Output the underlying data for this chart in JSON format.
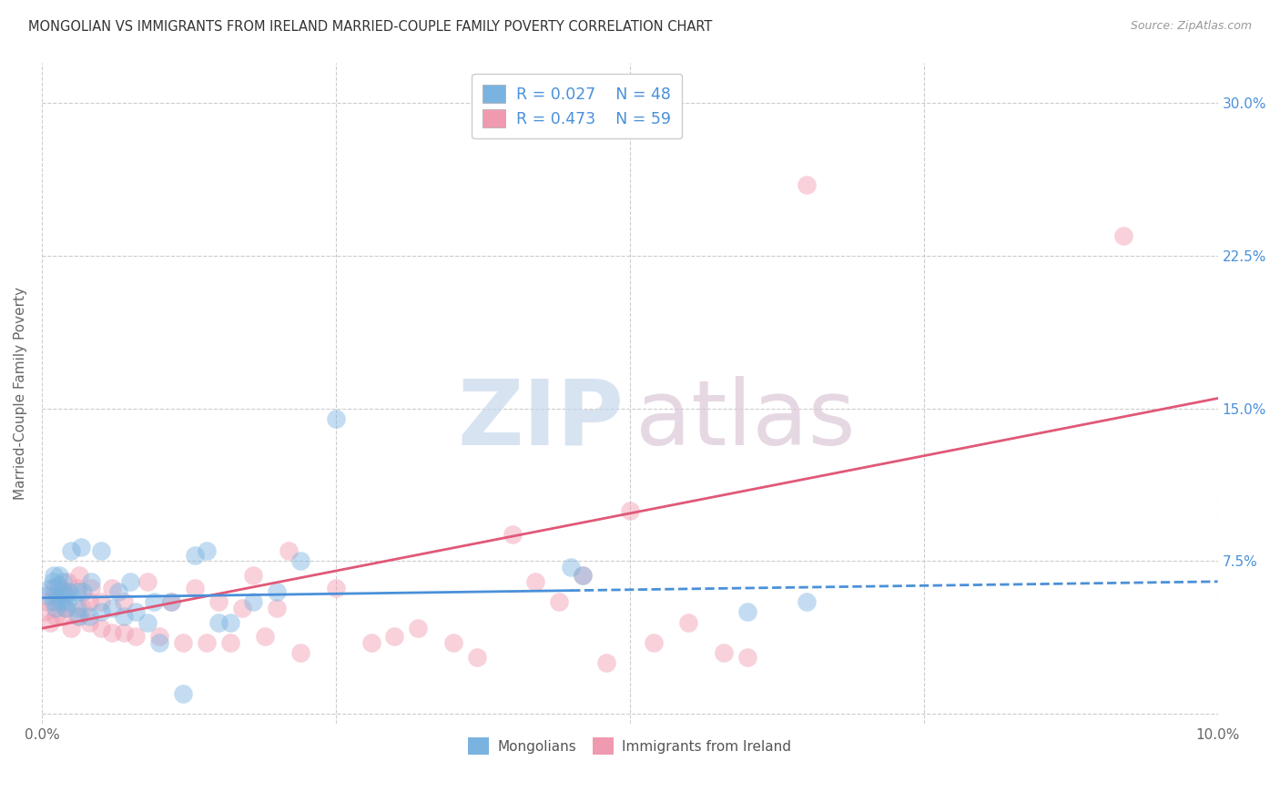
{
  "title": "MONGOLIAN VS IMMIGRANTS FROM IRELAND MARRIED-COUPLE FAMILY POVERTY CORRELATION CHART",
  "source": "Source: ZipAtlas.com",
  "ylabel": "Married-Couple Family Poverty",
  "xlim": [
    0.0,
    0.1
  ],
  "ylim": [
    -0.005,
    0.32
  ],
  "color_mongolian": "#7ab3e0",
  "color_ireland": "#f09ab0",
  "legend_r_mongolian": "R = 0.027",
  "legend_n_mongolian": "N = 48",
  "legend_r_ireland": "R = 0.473",
  "legend_n_ireland": "N = 59",
  "label_mongolian": "Mongolians",
  "label_ireland": "Immigrants from Ireland",
  "trend_line_mongolian_color": "#4a90d9",
  "trend_line_ireland_color": "#e05878",
  "mongolian_x": [
    0.0005,
    0.0007,
    0.0009,
    0.001,
    0.001,
    0.0012,
    0.0013,
    0.0014,
    0.0015,
    0.0016,
    0.0017,
    0.0018,
    0.002,
    0.002,
    0.0022,
    0.0023,
    0.0025,
    0.003,
    0.003,
    0.0032,
    0.0033,
    0.0035,
    0.004,
    0.0042,
    0.005,
    0.005,
    0.006,
    0.0065,
    0.007,
    0.0075,
    0.008,
    0.009,
    0.0095,
    0.01,
    0.011,
    0.012,
    0.013,
    0.014,
    0.015,
    0.016,
    0.018,
    0.02,
    0.022,
    0.025,
    0.045,
    0.046,
    0.06,
    0.065
  ],
  "mongolian_y": [
    0.058,
    0.062,
    0.065,
    0.055,
    0.068,
    0.052,
    0.058,
    0.063,
    0.068,
    0.055,
    0.06,
    0.065,
    0.052,
    0.058,
    0.055,
    0.06,
    0.08,
    0.052,
    0.06,
    0.048,
    0.082,
    0.06,
    0.048,
    0.065,
    0.05,
    0.08,
    0.052,
    0.06,
    0.048,
    0.065,
    0.05,
    0.045,
    0.055,
    0.035,
    0.055,
    0.01,
    0.078,
    0.08,
    0.045,
    0.045,
    0.055,
    0.06,
    0.075,
    0.145,
    0.072,
    0.068,
    0.05,
    0.055
  ],
  "ireland_x": [
    0.0003,
    0.0005,
    0.0007,
    0.001,
    0.001,
    0.0012,
    0.0014,
    0.0016,
    0.0018,
    0.002,
    0.002,
    0.0022,
    0.0025,
    0.003,
    0.003,
    0.0032,
    0.0035,
    0.004,
    0.004,
    0.0042,
    0.005,
    0.005,
    0.006,
    0.006,
    0.007,
    0.007,
    0.008,
    0.009,
    0.01,
    0.011,
    0.012,
    0.013,
    0.014,
    0.015,
    0.016,
    0.017,
    0.018,
    0.019,
    0.02,
    0.021,
    0.022,
    0.025,
    0.028,
    0.03,
    0.032,
    0.035,
    0.037,
    0.04,
    0.042,
    0.044,
    0.046,
    0.048,
    0.05,
    0.052,
    0.055,
    0.058,
    0.06,
    0.065,
    0.092
  ],
  "ireland_y": [
    0.05,
    0.055,
    0.045,
    0.058,
    0.062,
    0.048,
    0.055,
    0.062,
    0.048,
    0.052,
    0.06,
    0.065,
    0.042,
    0.048,
    0.062,
    0.068,
    0.052,
    0.045,
    0.055,
    0.062,
    0.042,
    0.055,
    0.04,
    0.062,
    0.04,
    0.055,
    0.038,
    0.065,
    0.038,
    0.055,
    0.035,
    0.062,
    0.035,
    0.055,
    0.035,
    0.052,
    0.068,
    0.038,
    0.052,
    0.08,
    0.03,
    0.062,
    0.035,
    0.038,
    0.042,
    0.035,
    0.028,
    0.088,
    0.065,
    0.055,
    0.068,
    0.025,
    0.1,
    0.035,
    0.045,
    0.03,
    0.028,
    0.26,
    0.235
  ],
  "bg_color": "#ffffff",
  "grid_color": "#cccccc",
  "tick_color_right": "#4a90d9",
  "trend_mongo_x0": 0.0,
  "trend_mongo_x1": 0.1,
  "trend_mongo_y0": 0.057,
  "trend_mongo_y1": 0.065,
  "trend_mongo_solid_end": 0.045,
  "trend_ire_x0": 0.0,
  "trend_ire_x1": 0.1,
  "trend_ire_y0": 0.042,
  "trend_ire_y1": 0.155
}
